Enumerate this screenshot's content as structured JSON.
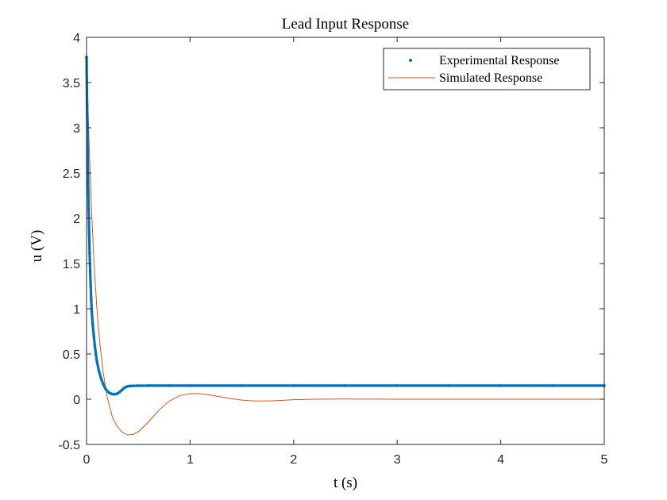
{
  "chart_data": {
    "type": "line",
    "title": "Lead Input Response",
    "xlabel": "t (s)",
    "ylabel": "u (V)",
    "xlim": [
      0,
      5
    ],
    "ylim": [
      -0.5,
      4
    ],
    "xticks": [
      0,
      1,
      2,
      3,
      4,
      5
    ],
    "xtick_labels": [
      "0",
      "1",
      "2",
      "3",
      "4",
      "5"
    ],
    "yticks": [
      -0.5,
      0,
      0.5,
      1,
      1.5,
      2,
      2.5,
      3,
      3.5,
      4
    ],
    "ytick_labels": [
      "-0.5",
      "0",
      "0.5",
      "1",
      "1.5",
      "2",
      "2.5",
      "3",
      "3.5",
      "4"
    ],
    "grid": false,
    "legend_position": "top-right",
    "series": [
      {
        "name": "Experimental Response",
        "style": "markers",
        "color": "#0072BD",
        "x": [
          0,
          0.005,
          0.01,
          0.015,
          0.02,
          0.025,
          0.03,
          0.035,
          0.04,
          0.045,
          0.05,
          0.06,
          0.07,
          0.08,
          0.09,
          0.1,
          0.12,
          0.14,
          0.16,
          0.18,
          0.2,
          0.22,
          0.24,
          0.26,
          0.28,
          0.3,
          0.32,
          0.34,
          0.36,
          0.38,
          0.4,
          0.42,
          0.45,
          0.5,
          0.6,
          0.8,
          1.0,
          1.5,
          2.0,
          2.5,
          3.0,
          3.5,
          4.0,
          4.5,
          5.0
        ],
        "y": [
          3.78,
          3.25,
          2.81,
          2.43,
          2.11,
          1.84,
          1.61,
          1.41,
          1.25,
          1.1,
          0.97,
          0.82,
          0.7,
          0.59,
          0.5,
          0.42,
          0.31,
          0.23,
          0.17,
          0.12,
          0.09,
          0.07,
          0.06,
          0.055,
          0.055,
          0.065,
          0.08,
          0.1,
          0.12,
          0.135,
          0.142,
          0.146,
          0.148,
          0.149,
          0.15,
          0.15,
          0.15,
          0.15,
          0.15,
          0.15,
          0.15,
          0.15,
          0.15,
          0.15,
          0.15
        ]
      },
      {
        "name": "Simulated Response",
        "style": "line",
        "color": "#D95319",
        "x": [
          0,
          0.01,
          0.02,
          0.03,
          0.05,
          0.07,
          0.1,
          0.13,
          0.16,
          0.2,
          0.25,
          0.3,
          0.35,
          0.4,
          0.45,
          0.5,
          0.6,
          0.7,
          0.8,
          0.9,
          1.0,
          1.05,
          1.1,
          1.2,
          1.3,
          1.4,
          1.5,
          1.6,
          1.7,
          1.8,
          1.9,
          2.0,
          2.2,
          2.5,
          3.0,
          4.0,
          5.0
        ],
        "y": [
          3.8,
          3.4,
          3.0,
          2.65,
          2.05,
          1.55,
          1.0,
          0.6,
          0.3,
          0.02,
          -0.2,
          -0.31,
          -0.37,
          -0.395,
          -0.39,
          -0.36,
          -0.25,
          -0.12,
          -0.02,
          0.04,
          0.06,
          0.062,
          0.06,
          0.045,
          0.025,
          0.005,
          -0.01,
          -0.018,
          -0.02,
          -0.017,
          -0.012,
          -0.006,
          0.0,
          0.002,
          0.0,
          0.0,
          0.0
        ]
      }
    ]
  }
}
